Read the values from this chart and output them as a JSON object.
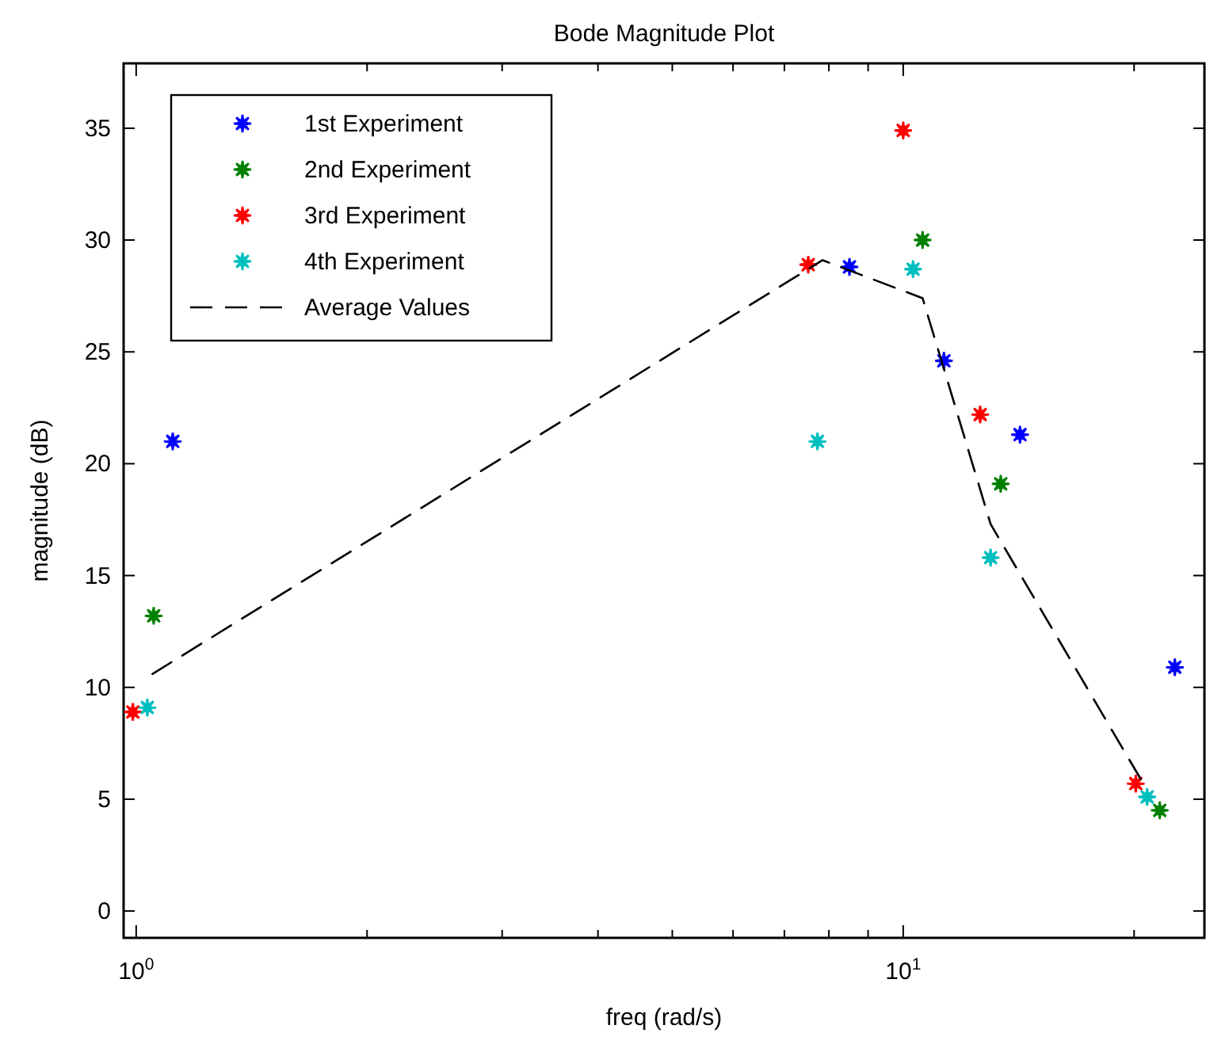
{
  "chart_data": {
    "type": "scatter",
    "title": "Bode Magnitude Plot",
    "xlabel": "freq (rad/s)",
    "ylabel": "magnitude (dB)",
    "log": "x",
    "grid": false,
    "legend": "top left",
    "marker": "star",
    "xlim": [
      0.963,
      24.7
    ],
    "ylim": [
      -1.2,
      37.9
    ],
    "xticks": [
      {
        "value": 1,
        "label": "10$^{0}$"
      },
      {
        "value": 2,
        "label": null
      },
      {
        "value": 3,
        "label": null
      },
      {
        "value": 4,
        "label": null
      },
      {
        "value": 5,
        "label": null
      },
      {
        "value": 6,
        "label": null
      },
      {
        "value": 7,
        "label": null
      },
      {
        "value": 8,
        "label": null
      },
      {
        "value": 9,
        "label": null
      },
      {
        "value": 10,
        "label": "10$^{1}$"
      },
      {
        "value": 20,
        "label": null
      }
    ],
    "yticks": [
      0,
      5,
      10,
      15,
      20,
      25,
      30,
      35
    ],
    "series": [
      {
        "name": "1st Experiment",
        "color": "#0000ff",
        "x": [
          1.116,
          8.51,
          11.3,
          14.2,
          22.6
        ],
        "values": [
          21.0,
          28.8,
          24.6,
          21.3,
          10.9
        ]
      },
      {
        "name": "2nd Experiment",
        "color": "#008000",
        "x": [
          1.054,
          10.6,
          13.4,
          21.6
        ],
        "values": [
          13.2,
          30.0,
          19.1,
          4.5
        ]
      },
      {
        "name": "3rd Experiment",
        "color": "#ff0000",
        "x": [
          0.99,
          7.52,
          10.0,
          12.6,
          20.1
        ],
        "values": [
          8.9,
          28.9,
          34.9,
          22.2,
          5.7
        ]
      },
      {
        "name": "4th Experiment",
        "color": "#00bfbf",
        "x": [
          1.034,
          7.73,
          10.3,
          13.0,
          20.8
        ],
        "values": [
          9.1,
          21.0,
          28.7,
          15.8,
          5.1
        ]
      },
      {
        "name": "Average Values",
        "type": "line",
        "color": "#000000",
        "marker": "none",
        "line_style": "dashed",
        "x": [
          1.05,
          7.85,
          10.6,
          13.0,
          20.4
        ],
        "values": [
          10.6,
          29.1,
          27.4,
          17.3,
          5.9
        ]
      }
    ]
  }
}
